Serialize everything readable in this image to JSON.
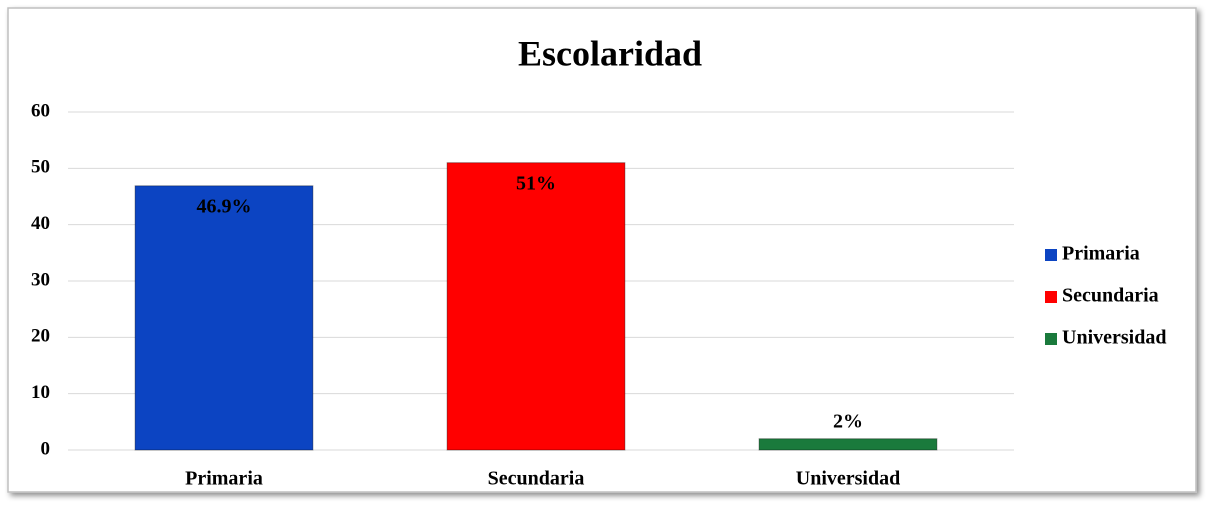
{
  "chart_data": {
    "type": "bar",
    "title": "Escolaridad",
    "categories": [
      "Primaria",
      "Secundaria",
      "Universidad"
    ],
    "values": [
      46.9,
      51,
      2
    ],
    "value_labels": [
      "46.9%",
      "51%",
      "2%"
    ],
    "colors": [
      "#0c44c2",
      "#ff0000",
      "#1a7a3c"
    ],
    "ylim": [
      0,
      60
    ],
    "yticks": [
      0,
      10,
      20,
      30,
      40,
      50,
      60
    ],
    "grid": true,
    "legend": "right"
  }
}
